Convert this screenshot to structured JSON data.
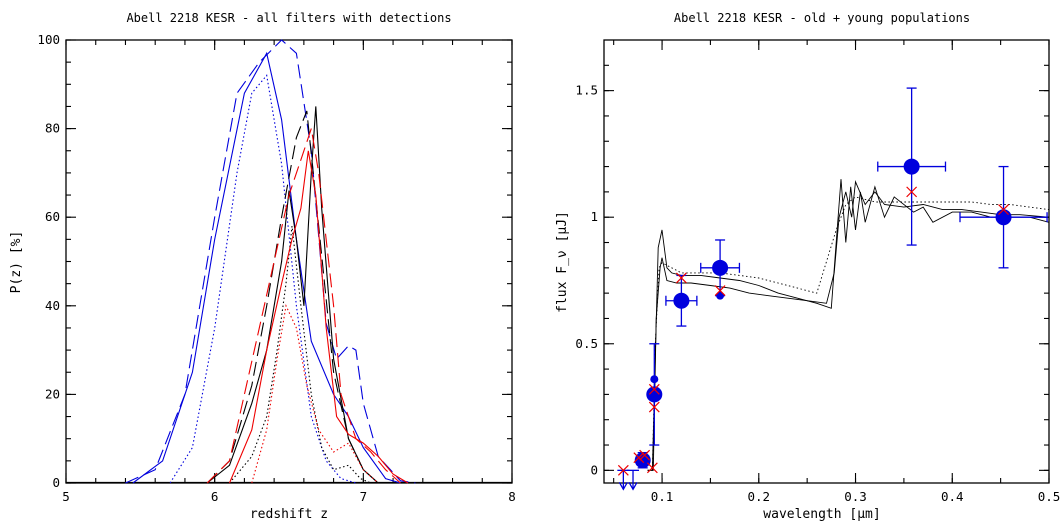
{
  "chart_data": [
    {
      "type": "line",
      "title": "Abell 2218 KESR - all filters with detections",
      "xlabel": "redshift z",
      "ylabel": "P(z) [%]",
      "xlim": [
        5,
        8
      ],
      "ylim": [
        0,
        100
      ],
      "xticks": [
        "5",
        "6",
        "7",
        "8"
      ],
      "yticks": [
        "0",
        "20",
        "40",
        "60",
        "80",
        "100"
      ],
      "grid": false,
      "colors": {
        "blue": "#0000dd",
        "red": "#ee0000",
        "black": "#000000"
      },
      "series": [
        {
          "color": "blue",
          "dash": "long",
          "points": [
            [
              5.4,
              0
            ],
            [
              5.6,
              3
            ],
            [
              5.8,
              20
            ],
            [
              6.0,
              60
            ],
            [
              6.15,
              88
            ],
            [
              6.3,
              95
            ],
            [
              6.45,
              100
            ],
            [
              6.55,
              97
            ],
            [
              6.65,
              75
            ],
            [
              6.75,
              36
            ],
            [
              6.82,
              28
            ],
            [
              6.9,
              31
            ],
            [
              6.95,
              30
            ],
            [
              7.0,
              18
            ],
            [
              7.1,
              6
            ],
            [
              7.25,
              0.5
            ],
            [
              7.35,
              0
            ]
          ]
        },
        {
          "color": "blue",
          "dash": "solid",
          "points": [
            [
              5.45,
              0
            ],
            [
              5.65,
              5
            ],
            [
              5.85,
              25
            ],
            [
              6.0,
              55
            ],
            [
              6.2,
              88
            ],
            [
              6.35,
              97
            ],
            [
              6.45,
              82
            ],
            [
              6.55,
              55
            ],
            [
              6.65,
              32
            ],
            [
              6.8,
              20
            ],
            [
              6.9,
              15
            ],
            [
              7.0,
              8
            ],
            [
              7.15,
              1
            ],
            [
              7.25,
              0
            ]
          ]
        },
        {
          "color": "blue",
          "dash": "dotted",
          "points": [
            [
              5.7,
              0
            ],
            [
              5.85,
              8
            ],
            [
              6.0,
              35
            ],
            [
              6.15,
              70
            ],
            [
              6.25,
              88
            ],
            [
              6.35,
              92
            ],
            [
              6.45,
              72
            ],
            [
              6.55,
              40
            ],
            [
              6.65,
              15
            ],
            [
              6.75,
              5
            ],
            [
              6.85,
              1
            ],
            [
              6.95,
              0
            ]
          ]
        },
        {
          "color": "black",
          "dash": "long",
          "points": [
            [
              5.95,
              0
            ],
            [
              6.1,
              5
            ],
            [
              6.25,
              22
            ],
            [
              6.35,
              40
            ],
            [
              6.45,
              60
            ],
            [
              6.55,
              78
            ],
            [
              6.62,
              84
            ],
            [
              6.7,
              58
            ],
            [
              6.8,
              25
            ],
            [
              6.9,
              10
            ],
            [
              7.0,
              3
            ],
            [
              7.1,
              0
            ]
          ]
        },
        {
          "color": "black",
          "dash": "solid",
          "points": [
            [
              5.95,
              0
            ],
            [
              6.1,
              4
            ],
            [
              6.25,
              18
            ],
            [
              6.35,
              30
            ],
            [
              6.45,
              50
            ],
            [
              6.5,
              66
            ],
            [
              6.55,
              55
            ],
            [
              6.6,
              40
            ],
            [
              6.65,
              70
            ],
            [
              6.68,
              85
            ],
            [
              6.72,
              62
            ],
            [
              6.8,
              28
            ],
            [
              6.9,
              10
            ],
            [
              7.0,
              3
            ],
            [
              7.1,
              0
            ]
          ]
        },
        {
          "color": "black",
          "dash": "dotted",
          "points": [
            [
              6.1,
              0
            ],
            [
              6.25,
              6
            ],
            [
              6.35,
              15
            ],
            [
              6.42,
              30
            ],
            [
              6.48,
              45
            ],
            [
              6.52,
              58
            ],
            [
              6.58,
              40
            ],
            [
              6.65,
              20
            ],
            [
              6.72,
              8
            ],
            [
              6.8,
              3
            ],
            [
              6.9,
              4
            ],
            [
              6.98,
              1
            ],
            [
              7.05,
              0
            ]
          ]
        },
        {
          "color": "red",
          "dash": "long",
          "points": [
            [
              5.95,
              0
            ],
            [
              6.1,
              5
            ],
            [
              6.2,
              20
            ],
            [
              6.3,
              35
            ],
            [
              6.4,
              50
            ],
            [
              6.5,
              65
            ],
            [
              6.6,
              75
            ],
            [
              6.65,
              80
            ],
            [
              6.7,
              70
            ],
            [
              6.8,
              40
            ],
            [
              6.85,
              20
            ],
            [
              6.95,
              10
            ],
            [
              7.05,
              7
            ],
            [
              7.15,
              3
            ],
            [
              7.25,
              0
            ]
          ]
        },
        {
          "color": "red",
          "dash": "solid",
          "points": [
            [
              6.1,
              0
            ],
            [
              6.25,
              12
            ],
            [
              6.35,
              30
            ],
            [
              6.45,
              45
            ],
            [
              6.52,
              55
            ],
            [
              6.58,
              62
            ],
            [
              6.63,
              75
            ],
            [
              6.68,
              65
            ],
            [
              6.75,
              35
            ],
            [
              6.82,
              15
            ],
            [
              6.9,
              11
            ],
            [
              7.0,
              9
            ],
            [
              7.1,
              6
            ],
            [
              7.2,
              2
            ],
            [
              7.3,
              0
            ]
          ]
        },
        {
          "color": "red",
          "dash": "dotted",
          "points": [
            [
              6.25,
              0
            ],
            [
              6.35,
              12
            ],
            [
              6.42,
              28
            ],
            [
              6.48,
              40
            ],
            [
              6.55,
              35
            ],
            [
              6.62,
              22
            ],
            [
              6.7,
              12
            ],
            [
              6.8,
              7
            ],
            [
              6.9,
              9
            ],
            [
              7.0,
              3
            ],
            [
              7.1,
              0
            ]
          ]
        }
      ]
    },
    {
      "type": "scatter",
      "title": "Abell 2218 KESR - old + young populations",
      "xlabel": "wavelength [μm]",
      "ylabel": "flux F_ν [μJ]",
      "xlim": [
        0.04,
        0.5
      ],
      "ylim": [
        -0.05,
        1.7
      ],
      "xticks": [
        "0.1",
        "0.2",
        "0.3",
        "0.4",
        "0.5"
      ],
      "yticks": [
        "0",
        "0.5",
        "1",
        "1.5"
      ],
      "grid": false,
      "observations": [
        {
          "x": 0.08,
          "y": 0.04,
          "xerr": 0.006,
          "yerr": 0.03
        },
        {
          "x": 0.092,
          "y": 0.3,
          "xerr": 0.004,
          "yerr": 0.2
        },
        {
          "x": 0.12,
          "y": 0.67,
          "xerr": 0.016,
          "yerr": 0.1
        },
        {
          "x": 0.16,
          "y": 0.8,
          "xerr": 0.02,
          "yerr": 0.11
        },
        {
          "x": 0.358,
          "y": 1.2,
          "xerr": 0.035,
          "yerr": 0.31
        },
        {
          "x": 0.453,
          "y": 1.0,
          "xerr": 0.045,
          "yerr": 0.2
        }
      ],
      "small_points": [
        [
          0.092,
          0.36
        ],
        [
          0.16,
          0.69
        ]
      ],
      "upper_limits": [
        [
          0.06,
          0.0
        ],
        [
          0.07,
          0.0
        ]
      ],
      "model_points": [
        [
          0.06,
          0.0
        ],
        [
          0.076,
          0.05
        ],
        [
          0.082,
          0.06
        ],
        [
          0.09,
          0.01
        ],
        [
          0.092,
          0.25
        ],
        [
          0.092,
          0.32
        ],
        [
          0.12,
          0.76
        ],
        [
          0.16,
          0.71
        ],
        [
          0.358,
          1.1
        ],
        [
          0.453,
          1.03
        ]
      ],
      "models": [
        {
          "dash": "solid",
          "points": [
            [
              0.085,
              0.0
            ],
            [
              0.09,
              0.0
            ],
            [
              0.093,
              0.45
            ],
            [
              0.096,
              0.88
            ],
            [
              0.1,
              0.95
            ],
            [
              0.105,
              0.8
            ],
            [
              0.11,
              0.78
            ],
            [
              0.12,
              0.77
            ],
            [
              0.14,
              0.77
            ],
            [
              0.16,
              0.76
            ],
            [
              0.18,
              0.75
            ],
            [
              0.2,
              0.73
            ],
            [
              0.22,
              0.7
            ],
            [
              0.24,
              0.68
            ],
            [
              0.26,
              0.66
            ],
            [
              0.275,
              0.64
            ],
            [
              0.28,
              0.9
            ],
            [
              0.285,
              1.15
            ],
            [
              0.29,
              0.9
            ],
            [
              0.295,
              1.12
            ],
            [
              0.3,
              0.95
            ],
            [
              0.305,
              1.1
            ],
            [
              0.31,
              0.98
            ],
            [
              0.32,
              1.12
            ],
            [
              0.33,
              1.0
            ],
            [
              0.34,
              1.08
            ],
            [
              0.36,
              1.02
            ],
            [
              0.37,
              1.04
            ],
            [
              0.38,
              0.98
            ],
            [
              0.4,
              1.02
            ],
            [
              0.42,
              1.02
            ],
            [
              0.44,
              1.0
            ],
            [
              0.46,
              1.0
            ],
            [
              0.48,
              1.0
            ],
            [
              0.5,
              0.98
            ]
          ]
        },
        {
          "dash": "dotted",
          "points": [
            [
              0.085,
              0.0
            ],
            [
              0.09,
              0.0
            ],
            [
              0.093,
              0.5
            ],
            [
              0.097,
              0.8
            ],
            [
              0.1,
              0.82
            ],
            [
              0.11,
              0.8
            ],
            [
              0.12,
              0.78
            ],
            [
              0.14,
              0.78
            ],
            [
              0.16,
              0.78
            ],
            [
              0.18,
              0.77
            ],
            [
              0.2,
              0.76
            ],
            [
              0.22,
              0.74
            ],
            [
              0.24,
              0.72
            ],
            [
              0.26,
              0.7
            ],
            [
              0.28,
              0.95
            ],
            [
              0.29,
              1.05
            ],
            [
              0.3,
              1.08
            ],
            [
              0.32,
              1.06
            ],
            [
              0.34,
              1.06
            ],
            [
              0.36,
              1.06
            ],
            [
              0.38,
              1.06
            ],
            [
              0.4,
              1.06
            ],
            [
              0.42,
              1.06
            ],
            [
              0.44,
              1.05
            ],
            [
              0.46,
              1.05
            ],
            [
              0.48,
              1.04
            ],
            [
              0.5,
              1.03
            ]
          ]
        },
        {
          "dash": "solid",
          "points": [
            [
              0.085,
              0.0
            ],
            [
              0.091,
              0.0
            ],
            [
              0.094,
              0.6
            ],
            [
              0.098,
              0.8
            ],
            [
              0.1,
              0.84
            ],
            [
              0.105,
              0.75
            ],
            [
              0.115,
              0.74
            ],
            [
              0.13,
              0.74
            ],
            [
              0.15,
              0.73
            ],
            [
              0.17,
              0.72
            ],
            [
              0.19,
              0.7
            ],
            [
              0.21,
              0.69
            ],
            [
              0.23,
              0.68
            ],
            [
              0.25,
              0.67
            ],
            [
              0.27,
              0.66
            ],
            [
              0.278,
              0.78
            ],
            [
              0.283,
              1.0
            ],
            [
              0.29,
              1.1
            ],
            [
              0.296,
              1.0
            ],
            [
              0.3,
              1.14
            ],
            [
              0.31,
              1.05
            ],
            [
              0.32,
              1.1
            ],
            [
              0.33,
              1.05
            ],
            [
              0.35,
              1.04
            ],
            [
              0.37,
              1.05
            ],
            [
              0.39,
              1.03
            ],
            [
              0.41,
              1.03
            ],
            [
              0.43,
              1.02
            ],
            [
              0.45,
              1.01
            ],
            [
              0.47,
              1.01
            ],
            [
              0.5,
              1.0
            ]
          ]
        }
      ]
    }
  ]
}
